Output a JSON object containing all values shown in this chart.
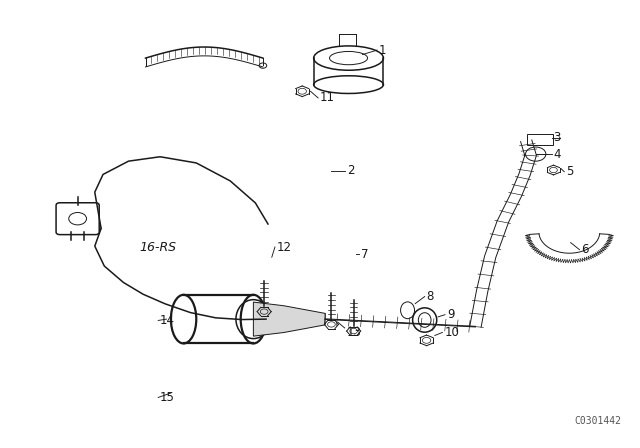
{
  "background_color": "#ffffff",
  "diagram_color": "#1a1a1a",
  "watermark_text": "C0301442",
  "label_16rs": "16-RS",
  "figsize": [
    6.4,
    4.48
  ],
  "dpi": 100
}
